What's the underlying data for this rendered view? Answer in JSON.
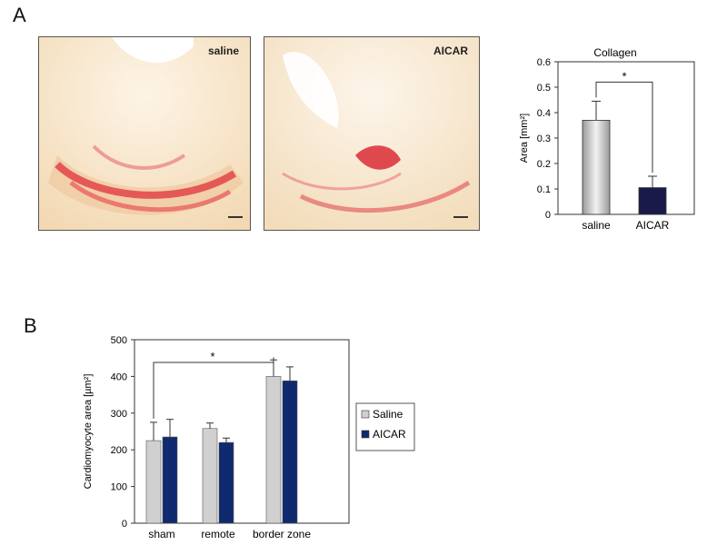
{
  "panels": {
    "A": {
      "letter": "A",
      "images": [
        {
          "label": "saline"
        },
        {
          "label": "AICAR"
        }
      ]
    },
    "B": {
      "letter": "B"
    }
  },
  "chart_data": [
    {
      "type": "bar",
      "title": "Collagen",
      "ylabel": "Area [mm²]",
      "xlabel": "",
      "categories": [
        "saline",
        "AICAR"
      ],
      "values": [
        0.37,
        0.105
      ],
      "errors": [
        0.075,
        0.045
      ],
      "bar_colors": [
        "#c8c8c8",
        "#1a1a4a"
      ],
      "ylim": [
        0,
        0.6
      ],
      "yticks": [
        "0",
        "0.1",
        "0.2",
        "0.3",
        "0.4",
        "0.5",
        "0.6"
      ],
      "significance": {
        "label": "*",
        "between": [
          0,
          1
        ]
      },
      "grid": false
    },
    {
      "type": "bar",
      "title": "",
      "ylabel": "Cardiomyocyte area [µm²]",
      "xlabel": "",
      "categories": [
        "sham",
        "remote",
        "border zone"
      ],
      "series": [
        {
          "name": "Saline",
          "color": "#d0d0d0",
          "values": [
            225,
            258,
            400
          ],
          "errors": [
            50,
            15,
            45
          ]
        },
        {
          "name": "AICAR",
          "color": "#0f2a6e",
          "values": [
            235,
            220,
            388
          ],
          "errors": [
            48,
            12,
            38
          ]
        }
      ],
      "ylim": [
        0,
        500
      ],
      "yticks": [
        "0",
        "100",
        "200",
        "300",
        "400",
        "500"
      ],
      "significance": {
        "label": "*",
        "between": [
          "sham",
          "border zone"
        ]
      },
      "legend": "right",
      "grid": false
    }
  ]
}
